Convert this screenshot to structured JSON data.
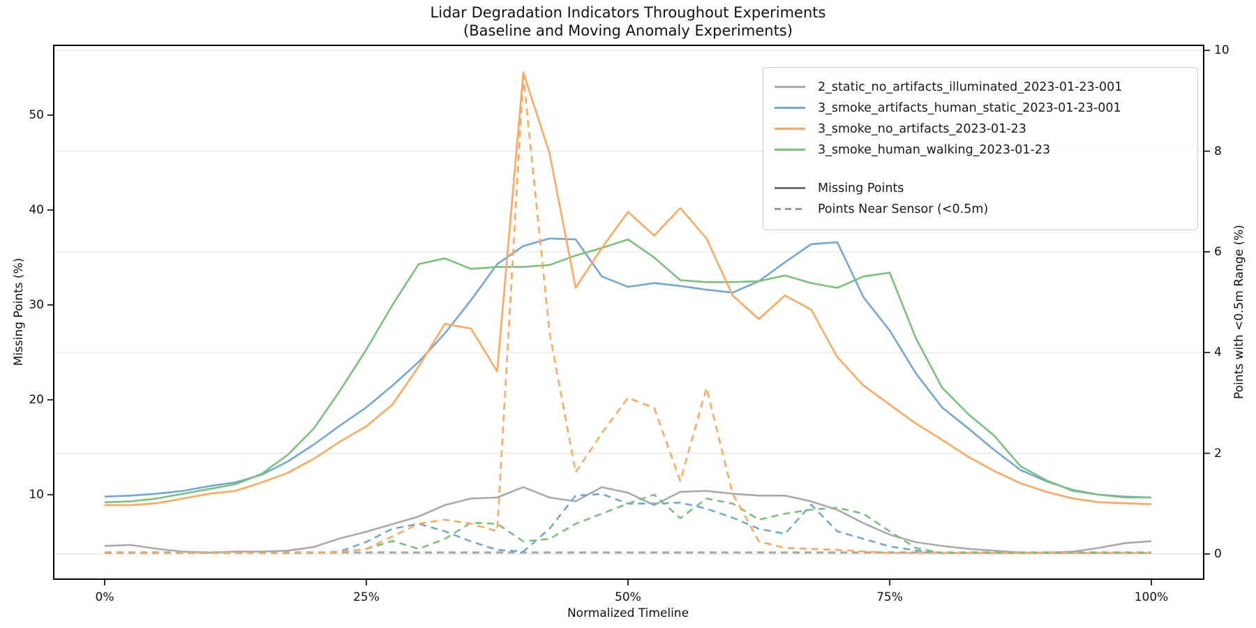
{
  "title": {
    "line1": "Lidar Degradation Indicators Throughout Experiments",
    "line2": "(Baseline and Moving Anomaly Experiments)"
  },
  "axes": {
    "x": {
      "label": "Normalized Timeline",
      "tick_labels": [
        "0%",
        "25%",
        "50%",
        "75%",
        "100%"
      ],
      "tick_values": [
        0,
        25,
        50,
        75,
        100
      ]
    },
    "y_left": {
      "label": "Missing Points (%)",
      "tick_values": [
        10,
        20,
        30,
        40,
        50
      ],
      "range": [
        1.1,
        57.35
      ]
    },
    "y_right": {
      "label": "Points with <0.5m Range (%)",
      "tick_values": [
        0,
        2,
        4,
        6,
        8,
        10
      ],
      "range": [
        -0.5,
        10.1
      ],
      "grid": true
    }
  },
  "colors": {
    "baseline_gray": "#a9a9a9",
    "blue": "#72a8d3",
    "orange": "#ffa85e",
    "green": "#7ac17a",
    "metric_legend_gray": "#6f6f6f",
    "grid": "#e7e7e7",
    "spine": "#000000"
  },
  "legend": {
    "experiments": [
      {
        "label": "2_static_no_artifacts_illuminated_2023-01-23-001",
        "color": "#a9a9a9"
      },
      {
        "label": "3_smoke_artifacts_human_static_2023-01-23-001",
        "color": "#72a8d3"
      },
      {
        "label": "3_smoke_no_artifacts_2023-01-23",
        "color": "#ffa85e"
      },
      {
        "label": "3_smoke_human_walking_2023-01-23",
        "color": "#7ac17a"
      }
    ],
    "metrics": [
      {
        "label": "Missing Points",
        "style": "solid",
        "color": "#6f6f6f"
      },
      {
        "label": "Points Near Sensor (<0.5m)",
        "style": "dashed",
        "color": "#9a9a9a"
      }
    ]
  },
  "chart_data": {
    "type": "line",
    "xlabel": "Normalized Timeline",
    "x_unit": "percent",
    "x": [
      0,
      2.5,
      5,
      7.5,
      10,
      12.5,
      15,
      17.5,
      20,
      22.5,
      25,
      27.5,
      30,
      32.5,
      35,
      37.5,
      40,
      42.5,
      45,
      47.5,
      50,
      52.5,
      55,
      57.5,
      60,
      62.5,
      65,
      67.5,
      70,
      72.5,
      75,
      77.5,
      80,
      82.5,
      85,
      87.5,
      90,
      92.5,
      95,
      97.5,
      100
    ],
    "y_left_label": "Missing Points (%)",
    "y_right_label": "Points with <0.5m Range (%)",
    "ylim_left": [
      1.1,
      57.35
    ],
    "ylim_right": [
      -0.5,
      10.1
    ],
    "series": [
      {
        "name": "2_static_no_artifacts_illuminated_2023-01-23-001",
        "metric": "Missing Points",
        "axis": "left",
        "style": "solid",
        "color": "#a9a9a9",
        "values": [
          4.6,
          4.7,
          4.3,
          4.0,
          3.9,
          4.0,
          4.0,
          4.1,
          4.5,
          5.4,
          6.1,
          6.9,
          7.7,
          8.9,
          9.6,
          9.7,
          10.8,
          9.7,
          9.3,
          10.8,
          10.2,
          8.9,
          10.3,
          10.4,
          10.1,
          9.9,
          9.9,
          9.3,
          8.4,
          7.0,
          5.8,
          5.0,
          4.6,
          4.3,
          4.1,
          3.9,
          3.9,
          4.0,
          4.4,
          4.9,
          5.1
        ]
      },
      {
        "name": "3_smoke_artifacts_human_static_2023-01-23-001",
        "metric": "Missing Points",
        "axis": "left",
        "style": "solid",
        "color": "#72a8d3",
        "values": [
          9.8,
          9.9,
          10.1,
          10.4,
          10.9,
          11.3,
          12.1,
          13.5,
          15.3,
          17.3,
          19.2,
          21.5,
          24.0,
          27.0,
          30.5,
          34.3,
          36.2,
          37.0,
          36.9,
          33.0,
          31.9,
          32.3,
          32.0,
          31.6,
          31.3,
          32.5,
          34.5,
          36.4,
          36.6,
          30.8,
          27.3,
          22.8,
          19.2,
          17.0,
          14.7,
          12.6,
          11.4,
          10.5,
          10.0,
          9.8,
          9.7
        ]
      },
      {
        "name": "3_smoke_human_walking_2023-01-23",
        "metric": "Missing Points",
        "axis": "left",
        "style": "solid",
        "color": "#7ac17a",
        "values": [
          9.2,
          9.3,
          9.6,
          10.1,
          10.6,
          11.1,
          12.2,
          14.2,
          17.0,
          21.0,
          25.3,
          30.0,
          34.3,
          34.9,
          33.8,
          34.0,
          34.0,
          34.2,
          35.2,
          36.0,
          36.9,
          35.0,
          32.6,
          32.4,
          32.4,
          32.5,
          33.1,
          32.3,
          31.8,
          33.0,
          33.4,
          26.5,
          21.3,
          18.5,
          16.2,
          13.0,
          11.5,
          10.4,
          10.0,
          9.7,
          9.7
        ]
      },
      {
        "name": "3_smoke_no_artifacts_2023-01-23",
        "metric": "Missing Points",
        "axis": "left",
        "style": "solid",
        "color": "#ffa85e",
        "values": [
          8.9,
          8.9,
          9.1,
          9.6,
          10.1,
          10.4,
          11.3,
          12.3,
          13.8,
          15.6,
          17.2,
          19.5,
          23.5,
          28.0,
          27.5,
          23.0,
          54.5,
          46.0,
          31.8,
          36.0,
          39.8,
          37.3,
          40.2,
          37.0,
          31.0,
          28.5,
          31.0,
          29.5,
          24.5,
          21.5,
          19.5,
          17.5,
          15.8,
          14.0,
          12.5,
          11.2,
          10.3,
          9.6,
          9.2,
          9.1,
          9.0
        ]
      },
      {
        "name": "2_static_no_artifacts_illuminated_2023-01-23-001",
        "metric": "Points Near Sensor (<0.5m)",
        "axis": "right",
        "style": "dashed",
        "color": "#a9a9a9",
        "values": [
          0.03,
          0.03,
          0.03,
          0.03,
          0.03,
          0.03,
          0.03,
          0.03,
          0.03,
          0.03,
          0.03,
          0.03,
          0.03,
          0.03,
          0.03,
          0.03,
          0.03,
          0.03,
          0.03,
          0.03,
          0.03,
          0.03,
          0.03,
          0.03,
          0.03,
          0.03,
          0.03,
          0.03,
          0.03,
          0.03,
          0.03,
          0.03,
          0.03,
          0.03,
          0.03,
          0.03,
          0.03,
          0.03,
          0.03,
          0.03,
          0.03
        ]
      },
      {
        "name": "3_smoke_artifacts_human_static_2023-01-23-001",
        "metric": "Points Near Sensor (<0.5m)",
        "axis": "right",
        "style": "dashed",
        "color": "#72a8d3",
        "values": [
          0.02,
          0.02,
          0.02,
          0.02,
          0.02,
          0.02,
          0.02,
          0.02,
          0.02,
          0.05,
          0.24,
          0.5,
          0.6,
          0.45,
          0.25,
          0.08,
          0.05,
          0.5,
          1.16,
          1.19,
          1.0,
          1.0,
          1.02,
          0.9,
          0.72,
          0.5,
          0.4,
          0.98,
          0.45,
          0.3,
          0.15,
          0.07,
          0.02,
          0.02,
          0.02,
          0.02,
          0.02,
          0.02,
          0.02,
          0.02,
          0.02
        ]
      },
      {
        "name": "3_smoke_human_walking_2023-01-23",
        "metric": "Points Near Sensor (<0.5m)",
        "axis": "right",
        "style": "dashed",
        "color": "#7ac17a",
        "values": [
          0.02,
          0.02,
          0.02,
          0.02,
          0.02,
          0.02,
          0.02,
          0.02,
          0.02,
          0.04,
          0.1,
          0.26,
          0.1,
          0.3,
          0.62,
          0.6,
          0.25,
          0.3,
          0.6,
          0.8,
          1.0,
          1.18,
          0.71,
          1.1,
          1.0,
          0.68,
          0.8,
          0.88,
          0.92,
          0.8,
          0.45,
          0.12,
          0.02,
          0.02,
          0.02,
          0.02,
          0.02,
          0.02,
          0.02,
          0.02,
          0.02
        ]
      },
      {
        "name": "3_smoke_no_artifacts_2023-01-23",
        "metric": "Points Near Sensor (<0.5m)",
        "axis": "right",
        "style": "dashed",
        "color": "#ffa85e",
        "values": [
          0.02,
          0.02,
          0.02,
          0.02,
          0.02,
          0.02,
          0.02,
          0.02,
          0.02,
          0.04,
          0.1,
          0.35,
          0.6,
          0.68,
          0.6,
          0.45,
          9.5,
          4.4,
          1.62,
          2.4,
          3.1,
          2.9,
          1.45,
          3.3,
          1.2,
          0.25,
          0.12,
          0.1,
          0.08,
          0.05,
          0.02,
          0.02,
          0.02,
          0.02,
          0.02,
          0.02,
          0.02,
          0.02,
          0.02,
          0.02,
          0.02
        ]
      }
    ]
  }
}
